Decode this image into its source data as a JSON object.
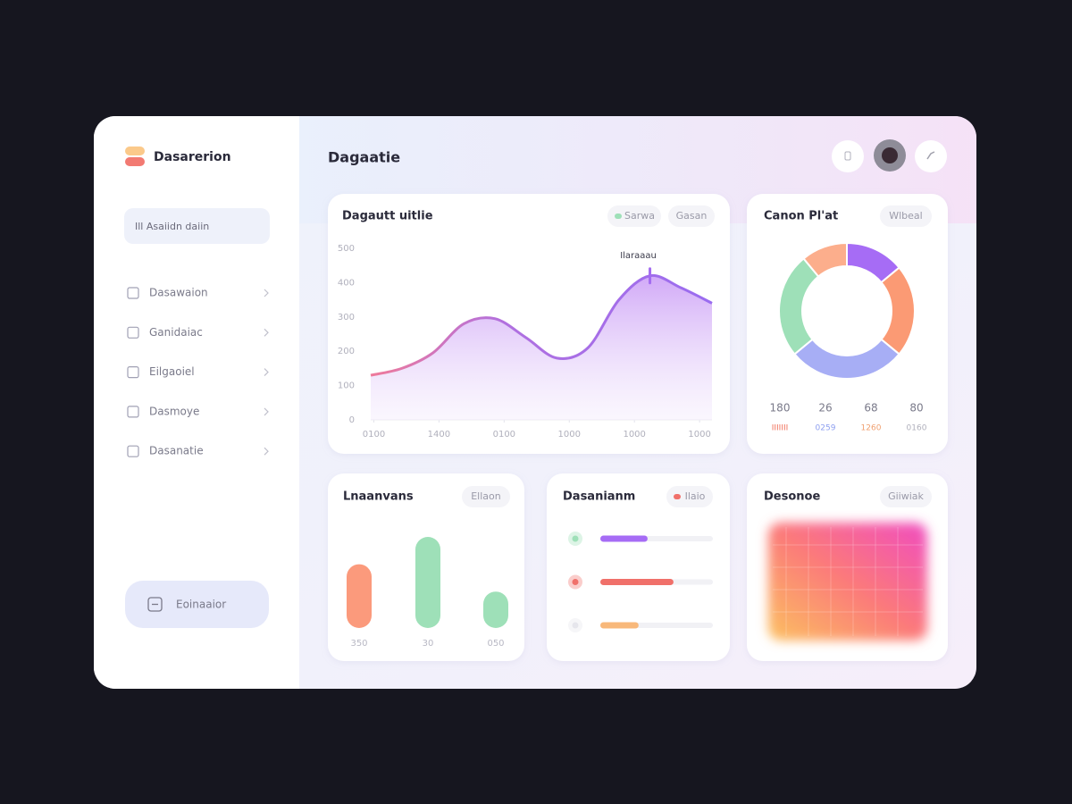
{
  "sidebar": {
    "brand": "Dasarerion",
    "search": "Ill Asaiidn daiin",
    "nav": [
      "Dasawaion",
      "Ganidaiac",
      "Eilgaoiel",
      "Dasmoye",
      "Dasanatie"
    ],
    "button": "Eoinaaior"
  },
  "header": {
    "title": "Dagaatie"
  },
  "panel": {
    "title": "Desonoe",
    "filter": "Giiwiak"
  },
  "chart_data": [
    {
      "type": "area",
      "title": "Dagautt uitlie",
      "filter": "Gasan",
      "annotation": "Ilaraaau",
      "x": [
        0,
        10,
        20,
        30,
        40,
        50,
        60,
        70,
        80,
        90,
        100,
        110
      ],
      "series": [
        {
          "name": "Sarwa",
          "color": "#a36cf0",
          "values": [
            130,
            150,
            195,
            280,
            295,
            240,
            180,
            210,
            350,
            420,
            385,
            340
          ]
        }
      ],
      "xlim": [
        0,
        110
      ],
      "xticks": [
        {
          "value": 1,
          "label": "0100"
        },
        {
          "value": 22,
          "label": "1400"
        },
        {
          "value": 43,
          "label": "0100"
        },
        {
          "value": 64,
          "label": "1000"
        },
        {
          "value": 85,
          "label": "1000"
        },
        {
          "value": 106,
          "label": "1000"
        }
      ],
      "ylim": [
        0,
        500
      ],
      "yticks": [
        0,
        100,
        200,
        300,
        400,
        500
      ],
      "grid": false
    },
    {
      "type": "donut",
      "title": "Canon Pl'at",
      "filter": "Wlbeal",
      "values": [
        14,
        22,
        28,
        25,
        11
      ],
      "colors": [
        "#a66cf5",
        "#fb9a74",
        "#a7aef5",
        "#9ee0b8",
        "#fcae8c"
      ],
      "stats": [
        "180",
        "26",
        "68",
        "80"
      ],
      "stat_labels": [
        "IIIIIII",
        "0259",
        "1260",
        "0160"
      ],
      "stat_colors": [
        "#f0705a",
        "#8fa0f0",
        "#f0a070",
        "#b0b0bc"
      ]
    },
    {
      "type": "bar",
      "title": "Lnaanvans",
      "filter": "Ellaon",
      "categories": [
        "350",
        "30",
        "050"
      ],
      "values": [
        70,
        100,
        40
      ],
      "colors": [
        "#fb9a7c",
        "#9ee0b8",
        "#9ee0b8"
      ],
      "ylim": [
        0,
        100
      ]
    },
    {
      "type": "progress",
      "title": "Dasanianm",
      "filter": "Ilaio",
      "values": [
        42,
        65,
        34
      ],
      "colors": [
        "#a66cf5",
        "#f0706a",
        "#f8b87a"
      ],
      "xlim": [
        0,
        100
      ]
    }
  ]
}
